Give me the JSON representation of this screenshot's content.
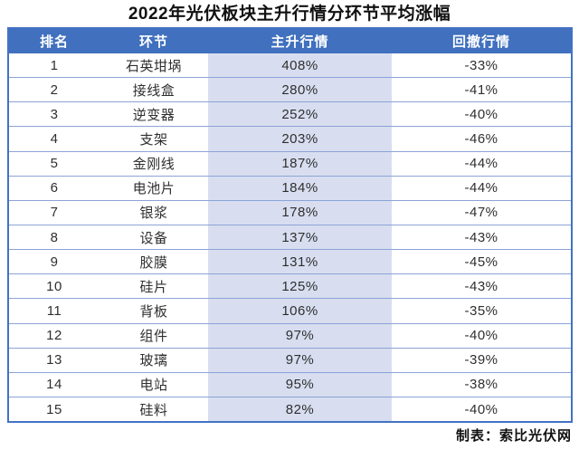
{
  "title": "2022年光伏板块主升行情分环节平均涨幅",
  "footer": "制表：索比光伏网",
  "colors": {
    "header_bg": "#4070BE",
    "header_text": "#FFFFFF",
    "highlight_column_bg": "#D8DEF0",
    "outer_border": "#4472C4",
    "row_border": "#8CA3D6",
    "title_text": "#111111",
    "cell_text": "#2F2F2F"
  },
  "chart_data": {
    "type": "table",
    "title": "2022年光伏板块主升行情分环节平均涨幅",
    "columns": [
      "排名",
      "环节",
      "主升行情",
      "回撤行情"
    ],
    "highlighted_column": "主升行情",
    "rows": [
      [
        "1",
        "石英坩埚",
        "408%",
        "-33%"
      ],
      [
        "2",
        "接线盒",
        "280%",
        "-41%"
      ],
      [
        "3",
        "逆变器",
        "252%",
        "-40%"
      ],
      [
        "4",
        "支架",
        "203%",
        "-46%"
      ],
      [
        "5",
        "金刚线",
        "187%",
        "-44%"
      ],
      [
        "6",
        "电池片",
        "184%",
        "-44%"
      ],
      [
        "7",
        "银浆",
        "178%",
        "-47%"
      ],
      [
        "8",
        "设备",
        "137%",
        "-43%"
      ],
      [
        "9",
        "胶膜",
        "131%",
        "-45%"
      ],
      [
        "10",
        "硅片",
        "125%",
        "-43%"
      ],
      [
        "11",
        "背板",
        "106%",
        "-35%"
      ],
      [
        "12",
        "组件",
        "97%",
        "-40%"
      ],
      [
        "13",
        "玻璃",
        "97%",
        "-39%"
      ],
      [
        "14",
        "电站",
        "95%",
        "-38%"
      ],
      [
        "15",
        "硅料",
        "82%",
        "-40%"
      ]
    ],
    "source_credit": "制表：索比光伏网"
  }
}
